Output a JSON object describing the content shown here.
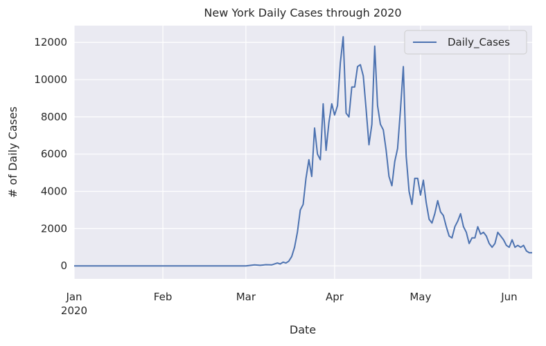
{
  "chart_data": {
    "type": "line",
    "title": "New York Daily Cases through 2020",
    "xlabel": "Date",
    "ylabel": "# of Daily Cases",
    "x_start": "2020-01-01",
    "x_end": "2020-06-09",
    "ylim": [
      -700,
      12900
    ],
    "yticks": [
      0,
      2000,
      4000,
      6000,
      8000,
      10000,
      12000
    ],
    "xticks": [
      {
        "date": "2020-01-01",
        "label": "Jan",
        "sublabel": "2020"
      },
      {
        "date": "2020-02-01",
        "label": "Feb",
        "sublabel": ""
      },
      {
        "date": "2020-03-01",
        "label": "Mar",
        "sublabel": ""
      },
      {
        "date": "2020-04-01",
        "label": "Apr",
        "sublabel": ""
      },
      {
        "date": "2020-05-01",
        "label": "May",
        "sublabel": ""
      },
      {
        "date": "2020-06-01",
        "label": "Jun",
        "sublabel": ""
      }
    ],
    "grid": true,
    "legend_position": "top-right",
    "background": "#eaeaf2",
    "line_color": "#4c72b0",
    "series": [
      {
        "name": "Daily_Cases",
        "x": [
          "2020-01-01",
          "2020-02-01",
          "2020-03-01",
          "2020-03-04",
          "2020-03-06",
          "2020-03-08",
          "2020-03-10",
          "2020-03-12",
          "2020-03-13",
          "2020-03-14",
          "2020-03-15",
          "2020-03-16",
          "2020-03-17",
          "2020-03-18",
          "2020-03-19",
          "2020-03-20",
          "2020-03-21",
          "2020-03-22",
          "2020-03-23",
          "2020-03-24",
          "2020-03-25",
          "2020-03-26",
          "2020-03-27",
          "2020-03-28",
          "2020-03-29",
          "2020-03-30",
          "2020-03-31",
          "2020-04-01",
          "2020-04-02",
          "2020-04-03",
          "2020-04-04",
          "2020-04-05",
          "2020-04-06",
          "2020-04-07",
          "2020-04-08",
          "2020-04-09",
          "2020-04-10",
          "2020-04-11",
          "2020-04-12",
          "2020-04-13",
          "2020-04-14",
          "2020-04-15",
          "2020-04-16",
          "2020-04-17",
          "2020-04-18",
          "2020-04-19",
          "2020-04-20",
          "2020-04-21",
          "2020-04-22",
          "2020-04-23",
          "2020-04-24",
          "2020-04-25",
          "2020-04-26",
          "2020-04-27",
          "2020-04-28",
          "2020-04-29",
          "2020-04-30",
          "2020-05-01",
          "2020-05-02",
          "2020-05-03",
          "2020-05-04",
          "2020-05-05",
          "2020-05-06",
          "2020-05-07",
          "2020-05-08",
          "2020-05-09",
          "2020-05-10",
          "2020-05-11",
          "2020-05-12",
          "2020-05-13",
          "2020-05-14",
          "2020-05-15",
          "2020-05-16",
          "2020-05-17",
          "2020-05-18",
          "2020-05-19",
          "2020-05-20",
          "2020-05-21",
          "2020-05-22",
          "2020-05-23",
          "2020-05-24",
          "2020-05-25",
          "2020-05-26",
          "2020-05-27",
          "2020-05-28",
          "2020-05-29",
          "2020-05-30",
          "2020-05-31",
          "2020-06-01",
          "2020-06-02",
          "2020-06-03",
          "2020-06-04",
          "2020-06-05",
          "2020-06-06",
          "2020-06-07",
          "2020-06-08",
          "2020-06-09"
        ],
        "values": [
          0,
          0,
          0,
          50,
          30,
          60,
          50,
          150,
          100,
          200,
          150,
          250,
          500,
          1000,
          1800,
          3000,
          3300,
          4700,
          5700,
          4800,
          7400,
          6000,
          5700,
          8700,
          6200,
          7700,
          8700,
          8100,
          8600,
          10900,
          12300,
          8200,
          8000,
          9600,
          9600,
          10700,
          10800,
          10200,
          8400,
          6500,
          7600,
          11800,
          8600,
          7600,
          7300,
          6200,
          4800,
          4300,
          5600,
          6300,
          8400,
          10700,
          5900,
          4000,
          3300,
          4700,
          4700,
          3800,
          4600,
          3400,
          2500,
          2300,
          2800,
          3500,
          2900,
          2700,
          2100,
          1600,
          1500,
          2100,
          2400,
          2800,
          2100,
          1800,
          1200,
          1500,
          1500,
          2100,
          1700,
          1800,
          1600,
          1200,
          1000,
          1200,
          1800,
          1600,
          1400,
          1100,
          1000,
          1400,
          1000,
          1100,
          1000,
          1100,
          800,
          700,
          700
        ]
      }
    ]
  }
}
